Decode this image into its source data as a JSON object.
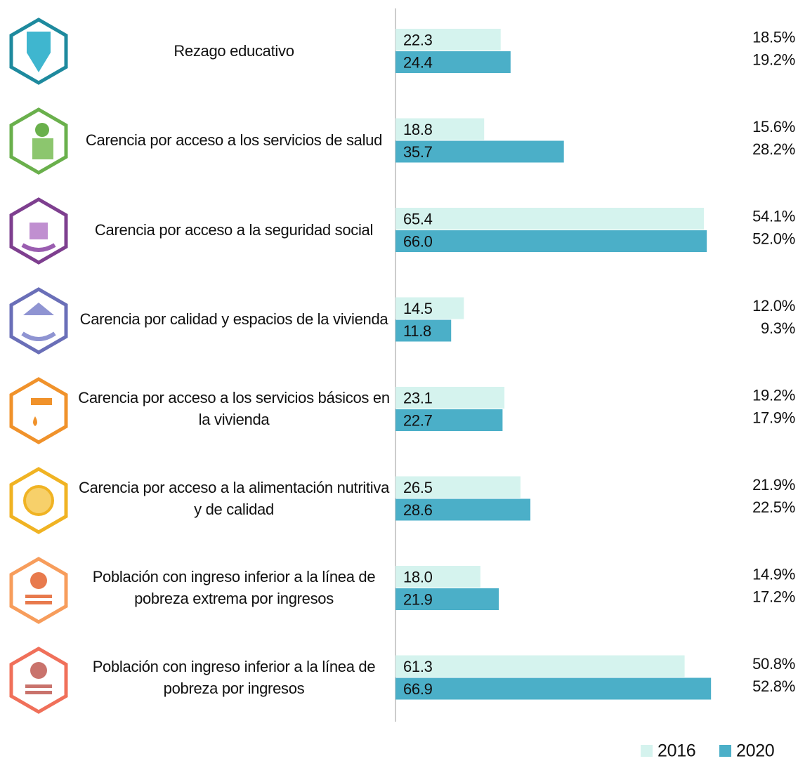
{
  "chart_data": {
    "type": "bar",
    "orientation": "horizontal",
    "categories": [
      "Rezago educativo",
      "Carencia por acceso a los servicios de salud",
      "Carencia por acceso a la seguridad social",
      "Carencia por calidad y espacios de la vivienda",
      "Carencia por acceso a los servicios básicos en la vivienda",
      "Carencia por acceso a la alimentación nutritiva y de calidad",
      "Población con ingreso inferior a la línea de pobreza extrema por ingresos",
      "Población con ingreso inferior a la línea de pobreza por ingresos"
    ],
    "series": [
      {
        "name": "2016",
        "color": "#d5f3ee",
        "values": [
          22.3,
          18.8,
          65.4,
          14.5,
          23.1,
          26.5,
          18.0,
          61.3
        ],
        "value_labels": [
          "22.3",
          "18.8",
          "65.4",
          "14.5",
          "23.1",
          "26.5",
          "18.0",
          "61.3"
        ],
        "shares": [
          18.5,
          15.6,
          54.1,
          12.0,
          19.2,
          21.9,
          14.9,
          50.8
        ],
        "share_labels": [
          "18.5%",
          "15.6%",
          "54.1%",
          "12.0%",
          "19.2%",
          "21.9%",
          "14.9%",
          "50.8%"
        ]
      },
      {
        "name": "2020",
        "color": "#4bafc8",
        "values": [
          24.4,
          35.7,
          66.0,
          11.8,
          22.7,
          28.6,
          21.9,
          66.9
        ],
        "value_labels": [
          "24.4",
          "35.7",
          "66.0",
          "11.8",
          "22.7",
          "28.6",
          "21.9",
          "66.9"
        ],
        "shares": [
          19.2,
          28.2,
          52.0,
          9.3,
          17.9,
          22.5,
          17.2,
          52.8
        ],
        "share_labels": [
          "19.2%",
          "28.2%",
          "52.0%",
          "9.3%",
          "17.9%",
          "22.5%",
          "17.2%",
          "52.8%"
        ]
      }
    ],
    "xlim": [
      0,
      70
    ],
    "legend": "bottom-right"
  }
}
